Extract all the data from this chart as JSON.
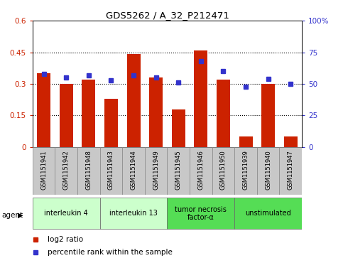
{
  "title": "GDS5262 / A_32_P212471",
  "samples": [
    "GSM1151941",
    "GSM1151942",
    "GSM1151948",
    "GSM1151943",
    "GSM1151944",
    "GSM1151949",
    "GSM1151945",
    "GSM1151946",
    "GSM1151950",
    "GSM1151939",
    "GSM1151940",
    "GSM1151947"
  ],
  "bar_values": [
    0.35,
    0.3,
    0.32,
    0.23,
    0.44,
    0.33,
    0.18,
    0.46,
    0.32,
    0.05,
    0.3,
    0.05
  ],
  "dot_values": [
    58,
    55,
    57,
    53,
    57,
    55,
    51,
    68,
    60,
    48,
    54,
    50
  ],
  "bar_color": "#cc2200",
  "dot_color": "#3333cc",
  "ylim_left": [
    0,
    0.6
  ],
  "ylim_right": [
    0,
    100
  ],
  "yticks_left": [
    0,
    0.15,
    0.3,
    0.45,
    0.6
  ],
  "yticks_right": [
    0,
    25,
    50,
    75,
    100
  ],
  "groups": [
    {
      "label": "interleukin 4",
      "indices": [
        0,
        1,
        2
      ],
      "color": "#ccffcc"
    },
    {
      "label": "interleukin 13",
      "indices": [
        3,
        4,
        5
      ],
      "color": "#ccffcc"
    },
    {
      "label": "tumor necrosis\nfactor-α",
      "indices": [
        6,
        7,
        8
      ],
      "color": "#55dd55"
    },
    {
      "label": "unstimulated",
      "indices": [
        9,
        10,
        11
      ],
      "color": "#55dd55"
    }
  ],
  "agent_label": "agent",
  "legend_log2": "log2 ratio",
  "legend_pct": "percentile rank within the sample",
  "background_color": "#ffffff",
  "tick_area_color": "#c8c8c8"
}
